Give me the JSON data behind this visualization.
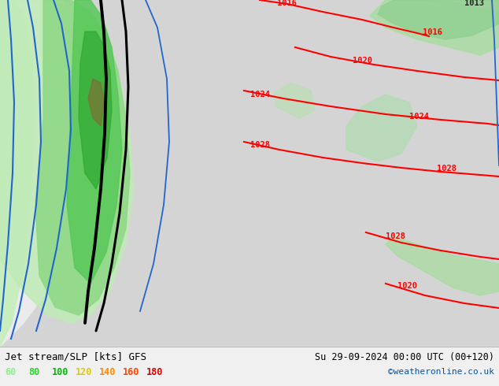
{
  "title_left": "Jet stream/SLP [kts] GFS",
  "title_right": "Su 29-09-2024 00:00 UTC (00+120)",
  "credit": "©weatheronline.co.uk",
  "legend_values": [
    "60",
    "80",
    "100",
    "120",
    "140",
    "160",
    "180"
  ],
  "legend_colors": [
    "#90ee90",
    "#32cd32",
    "#00bb00",
    "#ddcc00",
    "#ff8c00",
    "#ff4500",
    "#dd0000"
  ],
  "bg_color": "#d8d8d8",
  "white_bg": "#f0f0f0",
  "bottom_bar": "#f0f0f0",
  "figsize": [
    6.34,
    4.9
  ],
  "dpi": 100,
  "green_light": "#c8eec0",
  "green_medium": "#9ed89a",
  "green_dark": "#70c870"
}
